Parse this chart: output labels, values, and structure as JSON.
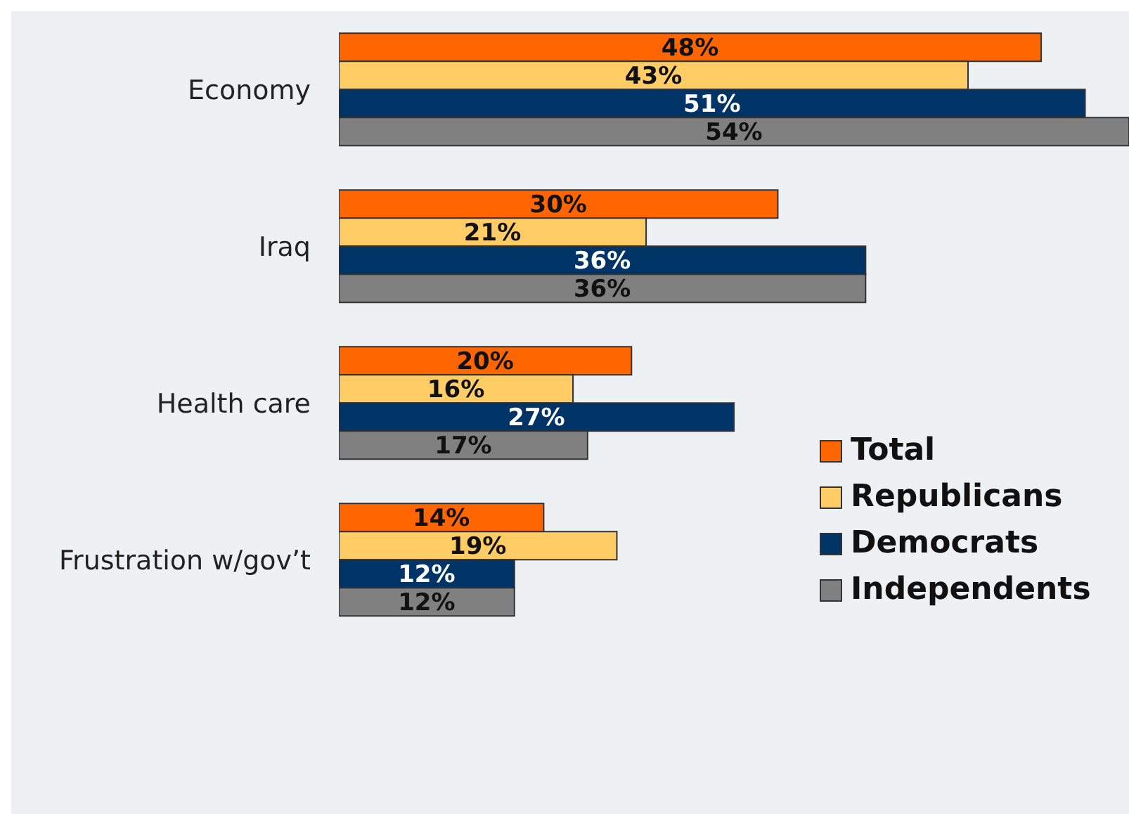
{
  "chart_data": {
    "type": "bar",
    "orientation": "horizontal",
    "categories": [
      "Economy",
      "Iraq",
      "Health care",
      "Frustration w/gov’t"
    ],
    "xlim": [
      0,
      54
    ],
    "tick_labels": "y",
    "grid": false,
    "legend": "right",
    "series": [
      {
        "name": "Total",
        "color": "#ff6600",
        "values": [
          48,
          30,
          20,
          14
        ],
        "value_labels": [
          "48%",
          "30%",
          "20%",
          "14%"
        ]
      },
      {
        "name": "Republicans",
        "color": "#ffcc66",
        "values": [
          43,
          21,
          16,
          19
        ],
        "value_labels": [
          "43%",
          "21%",
          "16%",
          "19%"
        ]
      },
      {
        "name": "Democrats",
        "color": "#003366",
        "values": [
          51,
          36,
          27,
          12
        ],
        "value_labels": [
          "51%",
          "36%",
          "27%",
          "12%"
        ]
      },
      {
        "name": "Independents",
        "color": "#808080",
        "values": [
          54,
          36,
          17,
          12
        ],
        "value_labels": [
          "54%",
          "36%",
          "17%",
          "12%"
        ]
      }
    ]
  }
}
